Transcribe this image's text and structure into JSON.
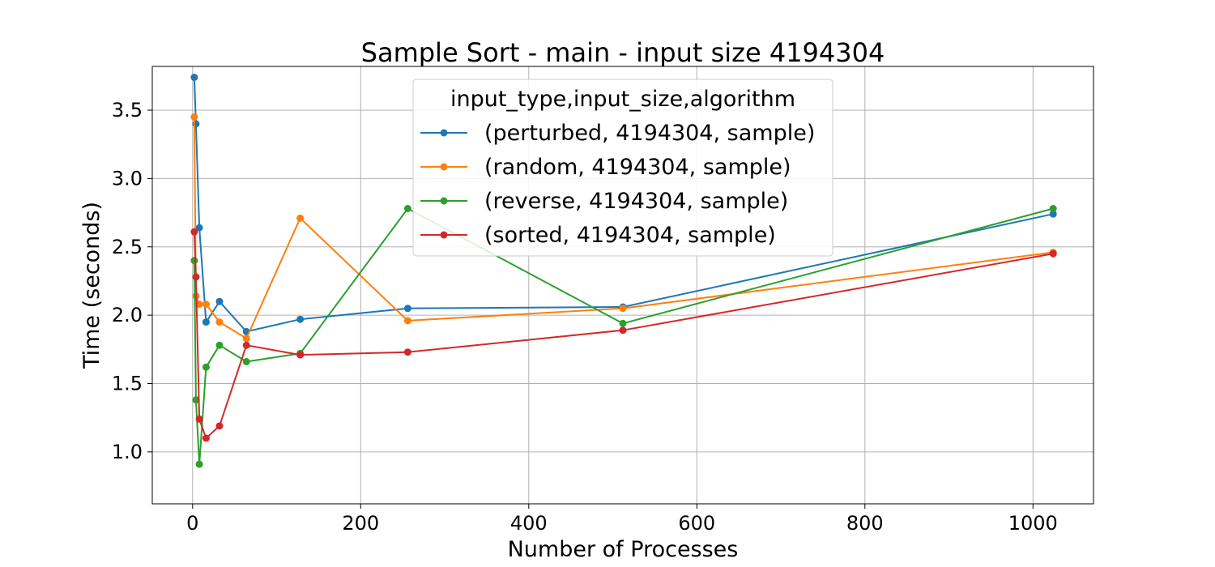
{
  "chart_data": {
    "type": "line",
    "title": "Sample Sort - main - input size 4194304",
    "xlabel": "Number of Processes",
    "ylabel": "Time (seconds)",
    "xlim": [
      -48,
      1072
    ],
    "ylim": [
      0.62,
      3.82
    ],
    "xticks": [
      0,
      200,
      400,
      600,
      800,
      1000
    ],
    "yticks": [
      1.0,
      1.5,
      2.0,
      2.5,
      3.0,
      3.5
    ],
    "grid": true,
    "legend": {
      "title": "input_type,input_size,algorithm",
      "position": "upper-center"
    },
    "x": [
      2,
      4,
      8,
      16,
      32,
      64,
      128,
      256,
      512,
      1024
    ],
    "series": [
      {
        "name": "(perturbed, 4194304, sample)",
        "color": "#1f77b4",
        "values": [
          3.74,
          3.4,
          2.64,
          1.95,
          2.1,
          1.88,
          1.97,
          2.05,
          2.06,
          2.74
        ]
      },
      {
        "name": "(random, 4194304, sample)",
        "color": "#ff7f0e",
        "values": [
          3.45,
          2.14,
          2.08,
          2.08,
          1.95,
          1.83,
          2.71,
          1.96,
          2.05,
          2.46
        ]
      },
      {
        "name": "(reverse, 4194304, sample)",
        "color": "#2ca02c",
        "values": [
          2.4,
          1.38,
          0.91,
          1.62,
          1.78,
          1.66,
          1.72,
          2.78,
          1.94,
          2.78
        ]
      },
      {
        "name": "(sorted, 4194304, sample)",
        "color": "#d62728",
        "values": [
          2.61,
          2.28,
          1.24,
          1.1,
          1.19,
          1.78,
          1.71,
          1.73,
          1.89,
          2.45
        ]
      }
    ]
  }
}
